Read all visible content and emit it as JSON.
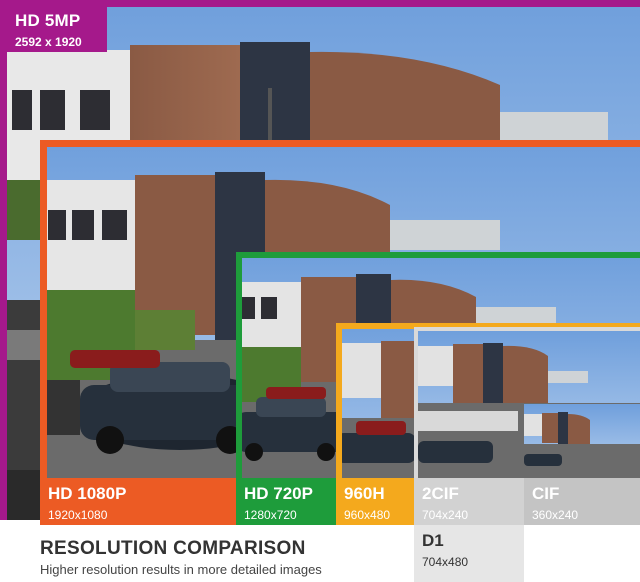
{
  "title": "RESOLUTION COMPARISON",
  "subtitle": "Higher resolution results in more detailed images",
  "colors": {
    "hd5mp": "#a5198b",
    "hd1080p": "#ec5b24",
    "hd720p": "#1e9c3b",
    "h960": "#f4a91d",
    "cif2": "#d2d2d2",
    "cif": "#c4c4c4",
    "d1": "#e6e6e6"
  },
  "resolutions": [
    {
      "name": "HD 5MP",
      "size": "2592 x 1920"
    },
    {
      "name": "HD 1080P",
      "size": "1920x1080"
    },
    {
      "name": "HD 720P",
      "size": "1280x720"
    },
    {
      "name": "960H",
      "size": "960x480"
    },
    {
      "name": "2CIF",
      "size": "704x240"
    },
    {
      "name": "CIF",
      "size": "360x240"
    },
    {
      "name": "D1",
      "size": "704x480"
    }
  ]
}
